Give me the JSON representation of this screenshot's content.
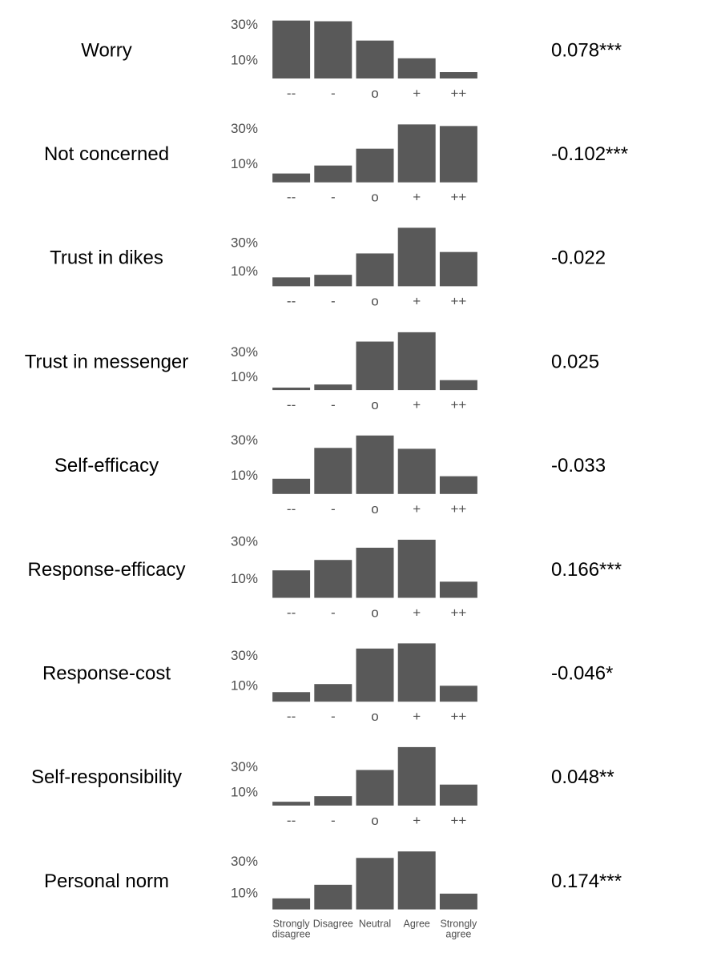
{
  "chart_data": [
    {
      "type": "bar",
      "title": "Worry",
      "annotation": "0.078***",
      "color": "#595959",
      "categories": [
        "--",
        "-",
        "o",
        "+",
        "++"
      ],
      "values": [
        32.7,
        32.3,
        21.4,
        11.4,
        3.6
      ],
      "ylim": [
        0,
        33
      ],
      "yticks": [
        {
          "value": 10,
          "label": "10%"
        },
        {
          "value": 30,
          "label": "30%"
        }
      ]
    },
    {
      "type": "bar",
      "title": "Not concerned",
      "annotation": "-0.102***",
      "color": "#595959",
      "categories": [
        "--",
        "-",
        "o",
        "+",
        "++"
      ],
      "values": [
        5,
        9.5,
        19,
        32.7,
        31.8
      ],
      "ylim": [
        0,
        33
      ],
      "yticks": [
        {
          "value": 10,
          "label": "10%"
        },
        {
          "value": 30,
          "label": "30%"
        }
      ]
    },
    {
      "type": "bar",
      "title": "Trust in dikes",
      "annotation": "-0.022",
      "color": "#595959",
      "categories": [
        "--",
        "-",
        "o",
        "+",
        "++"
      ],
      "values": [
        6.2,
        8,
        23,
        41,
        24
      ],
      "ylim": [
        0,
        41
      ],
      "yticks": [
        {
          "value": 10,
          "label": "10%"
        },
        {
          "value": 30,
          "label": "30%"
        }
      ]
    },
    {
      "type": "bar",
      "title": "Trust in messenger",
      "annotation": "0.025",
      "color": "#595959",
      "categories": [
        "--",
        "-",
        "o",
        "+",
        "++"
      ],
      "values": [
        2,
        4.5,
        39,
        46.5,
        8
      ],
      "ylim": [
        0,
        47
      ],
      "yticks": [
        {
          "value": 10,
          "label": "10%"
        },
        {
          "value": 30,
          "label": "30%"
        }
      ]
    },
    {
      "type": "bar",
      "title": "Self-efficacy",
      "annotation": "-0.033",
      "color": "#595959",
      "categories": [
        "--",
        "-",
        "o",
        "+",
        "++"
      ],
      "values": [
        8.6,
        26,
        33,
        25.5,
        10
      ],
      "ylim": [
        0,
        33
      ],
      "yticks": [
        {
          "value": 10,
          "label": "10%"
        },
        {
          "value": 30,
          "label": "30%"
        }
      ]
    },
    {
      "type": "bar",
      "title": "Response-efficacy",
      "annotation": "0.166***",
      "color": "#595959",
      "categories": [
        "--",
        "-",
        "o",
        "+",
        "++"
      ],
      "values": [
        14.8,
        20.4,
        27,
        31.3,
        8.7
      ],
      "ylim": [
        0,
        31.5
      ],
      "yticks": [
        {
          "value": 10,
          "label": "10%"
        },
        {
          "value": 30,
          "label": "30%"
        }
      ]
    },
    {
      "type": "bar",
      "title": "Response-cost",
      "annotation": "-0.046*",
      "color": "#595959",
      "categories": [
        "--",
        "-",
        "o",
        "+",
        "++"
      ],
      "values": [
        6.3,
        11.6,
        35,
        38.4,
        10.5
      ],
      "ylim": [
        0,
        38.5
      ],
      "yticks": [
        {
          "value": 10,
          "label": "10%"
        },
        {
          "value": 30,
          "label": "30%"
        }
      ]
    },
    {
      "type": "bar",
      "title": "Self-responsibility",
      "annotation": "0.048**",
      "color": "#595959",
      "categories": [
        "--",
        "-",
        "o",
        "+",
        "++"
      ],
      "values": [
        3,
        7.4,
        28,
        46,
        16.5
      ],
      "ylim": [
        0,
        46
      ],
      "yticks": [
        {
          "value": 10,
          "label": "10%"
        },
        {
          "value": 30,
          "label": "30%"
        }
      ]
    },
    {
      "type": "bar",
      "title": "Personal norm",
      "annotation": "0.174***",
      "color": "#595959",
      "categories": [
        "Strongly disagree",
        "Disagree",
        "Neutral",
        "Agree",
        "Strongly agree"
      ],
      "values": [
        7,
        15.6,
        32.6,
        36.7,
        10
      ],
      "ylim": [
        0,
        37
      ],
      "yticks": [
        {
          "value": 10,
          "label": "10%"
        },
        {
          "value": 30,
          "label": "30%"
        }
      ]
    }
  ]
}
